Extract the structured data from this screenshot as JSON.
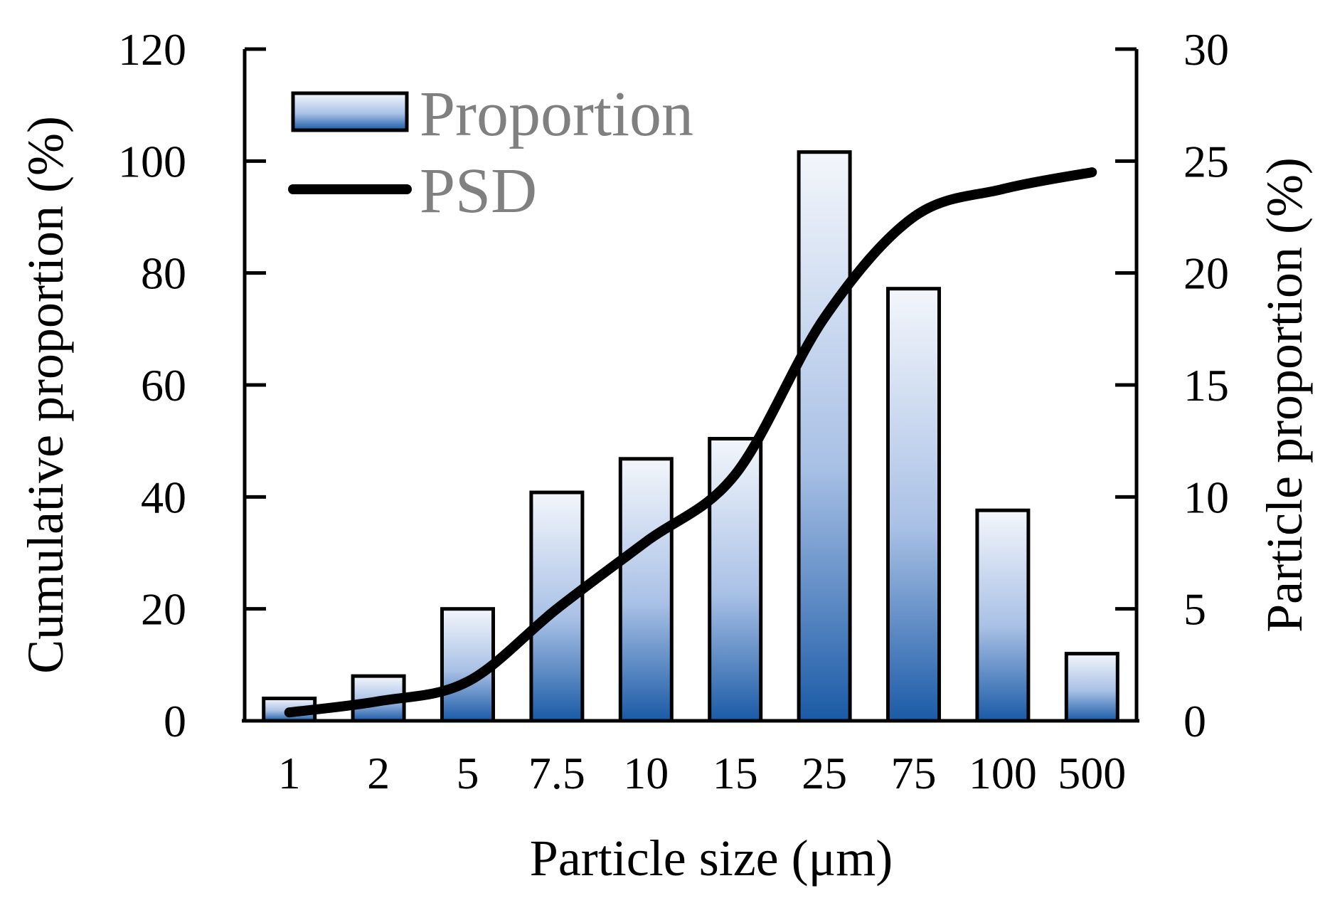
{
  "chart_data": {
    "type": "bar",
    "xlabel": "Particle size (μm)",
    "ylabel_left": "Cumulative proportion (%)",
    "ylabel_right": "Particle proportion (%)",
    "categories": [
      "1",
      "2",
      "5",
      "7.5",
      "10",
      "15",
      "25",
      "75",
      "100",
      "500"
    ],
    "y_left_lim": [
      0,
      120
    ],
    "y_left_ticks": [
      "0",
      "20",
      "40",
      "60",
      "80",
      "100",
      "120"
    ],
    "y_right_lim": [
      0,
      30
    ],
    "y_right_ticks": [
      "0",
      "5",
      "10",
      "15",
      "20",
      "25",
      "30"
    ],
    "legend_position": "top-left",
    "grid": false,
    "series": [
      {
        "name": "Proportion",
        "type": "bar",
        "axis": "right",
        "values": [
          1.0,
          2.0,
          5.0,
          10.2,
          11.7,
          12.6,
          25.4,
          19.3,
          9.4,
          3.0
        ]
      },
      {
        "name": "PSD",
        "type": "line",
        "axis": "left",
        "smooth": true,
        "values": [
          1.5,
          3.5,
          7.0,
          20.0,
          32.0,
          44.0,
          72.0,
          90.0,
          95.0,
          98.0
        ]
      }
    ],
    "colors": {
      "bar_top": "#f3f6fb",
      "bar_mid": "#a9c1e6",
      "bar_bottom": "#1a5aa6",
      "line": "#000000",
      "legend_text": "#808080"
    }
  }
}
